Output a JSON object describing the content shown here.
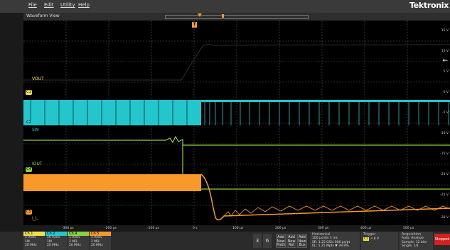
{
  "menu": [
    "File",
    "Edit",
    "Utility",
    "Help"
  ],
  "brand": "Tektronix",
  "view_title": "Waveform View",
  "trigger_marker": "T",
  "channels_on_plot": [
    {
      "name": "VOUT",
      "badge": "C1",
      "color": "#f0e04a"
    },
    {
      "name": "SW",
      "badge": "C2",
      "color": "#22c6cc"
    },
    {
      "name": "IOUT",
      "badge": "C4",
      "color": "#8bd23c"
    },
    {
      "name": "I_L",
      "badge": "C5",
      "color": "#f79a2a"
    }
  ],
  "y_ticks": [
    "15 V",
    "10 V",
    "5 V",
    "0 V",
    "-5 V",
    "-10 V",
    "-15 V",
    "-20 V",
    "-25 V",
    "-30 V"
  ],
  "x_ticks": [
    "-300 µs",
    "-200 µs",
    "-100 µs",
    "0 s",
    "100 µs",
    "200 µs",
    "300 µs",
    "400 µs",
    "500 µs"
  ],
  "channel_boxes": [
    {
      "head": "Ch 1",
      "color": "#f0e04a",
      "l1": "5 V/div",
      "l2": "1M",
      "l3": "20 MHz"
    },
    {
      "head": "Ch 2",
      "color": "#22c6cc",
      "l1": "10 V/div",
      "l2": "1M",
      "l3": "20 MHz"
    },
    {
      "head": "Ch 4",
      "color": "#8bd23c",
      "l1": "1 A/div",
      "l2": "1 MΩ",
      "l3": "20 MHz"
    },
    {
      "head": "Ch 5",
      "color": "#f79a2a",
      "l1": "1 A/div",
      "l2": "1 MΩ",
      "l3": "20 MHz"
    }
  ],
  "counts": [
    "3",
    "6"
  ],
  "add_buttons": [
    {
      "l1": "Add",
      "l2": "New",
      "l3": "Math"
    },
    {
      "l1": "Add",
      "l2": "New",
      "l3": "Ref"
    },
    {
      "l1": "Add",
      "l2": "New",
      "l3": "Bus"
    }
  ],
  "horizontal": {
    "head": "Horizontal",
    "l1": "100 µs/div    1 ms",
    "l2": "SR: 1.25 GS/s   800 ps/pt",
    "l3": "RL: 1.25 Mpts   ▼ 39.9%"
  },
  "trigger": {
    "head": "Trigger",
    "ch": "C1",
    "level": "8 V"
  },
  "acquisition": {
    "head": "Acquisition",
    "l1": "Auto,   Analyze",
    "l2": "Sample: 12 bits",
    "l3": "Single: 1/1"
  },
  "status": "Stopped"
}
